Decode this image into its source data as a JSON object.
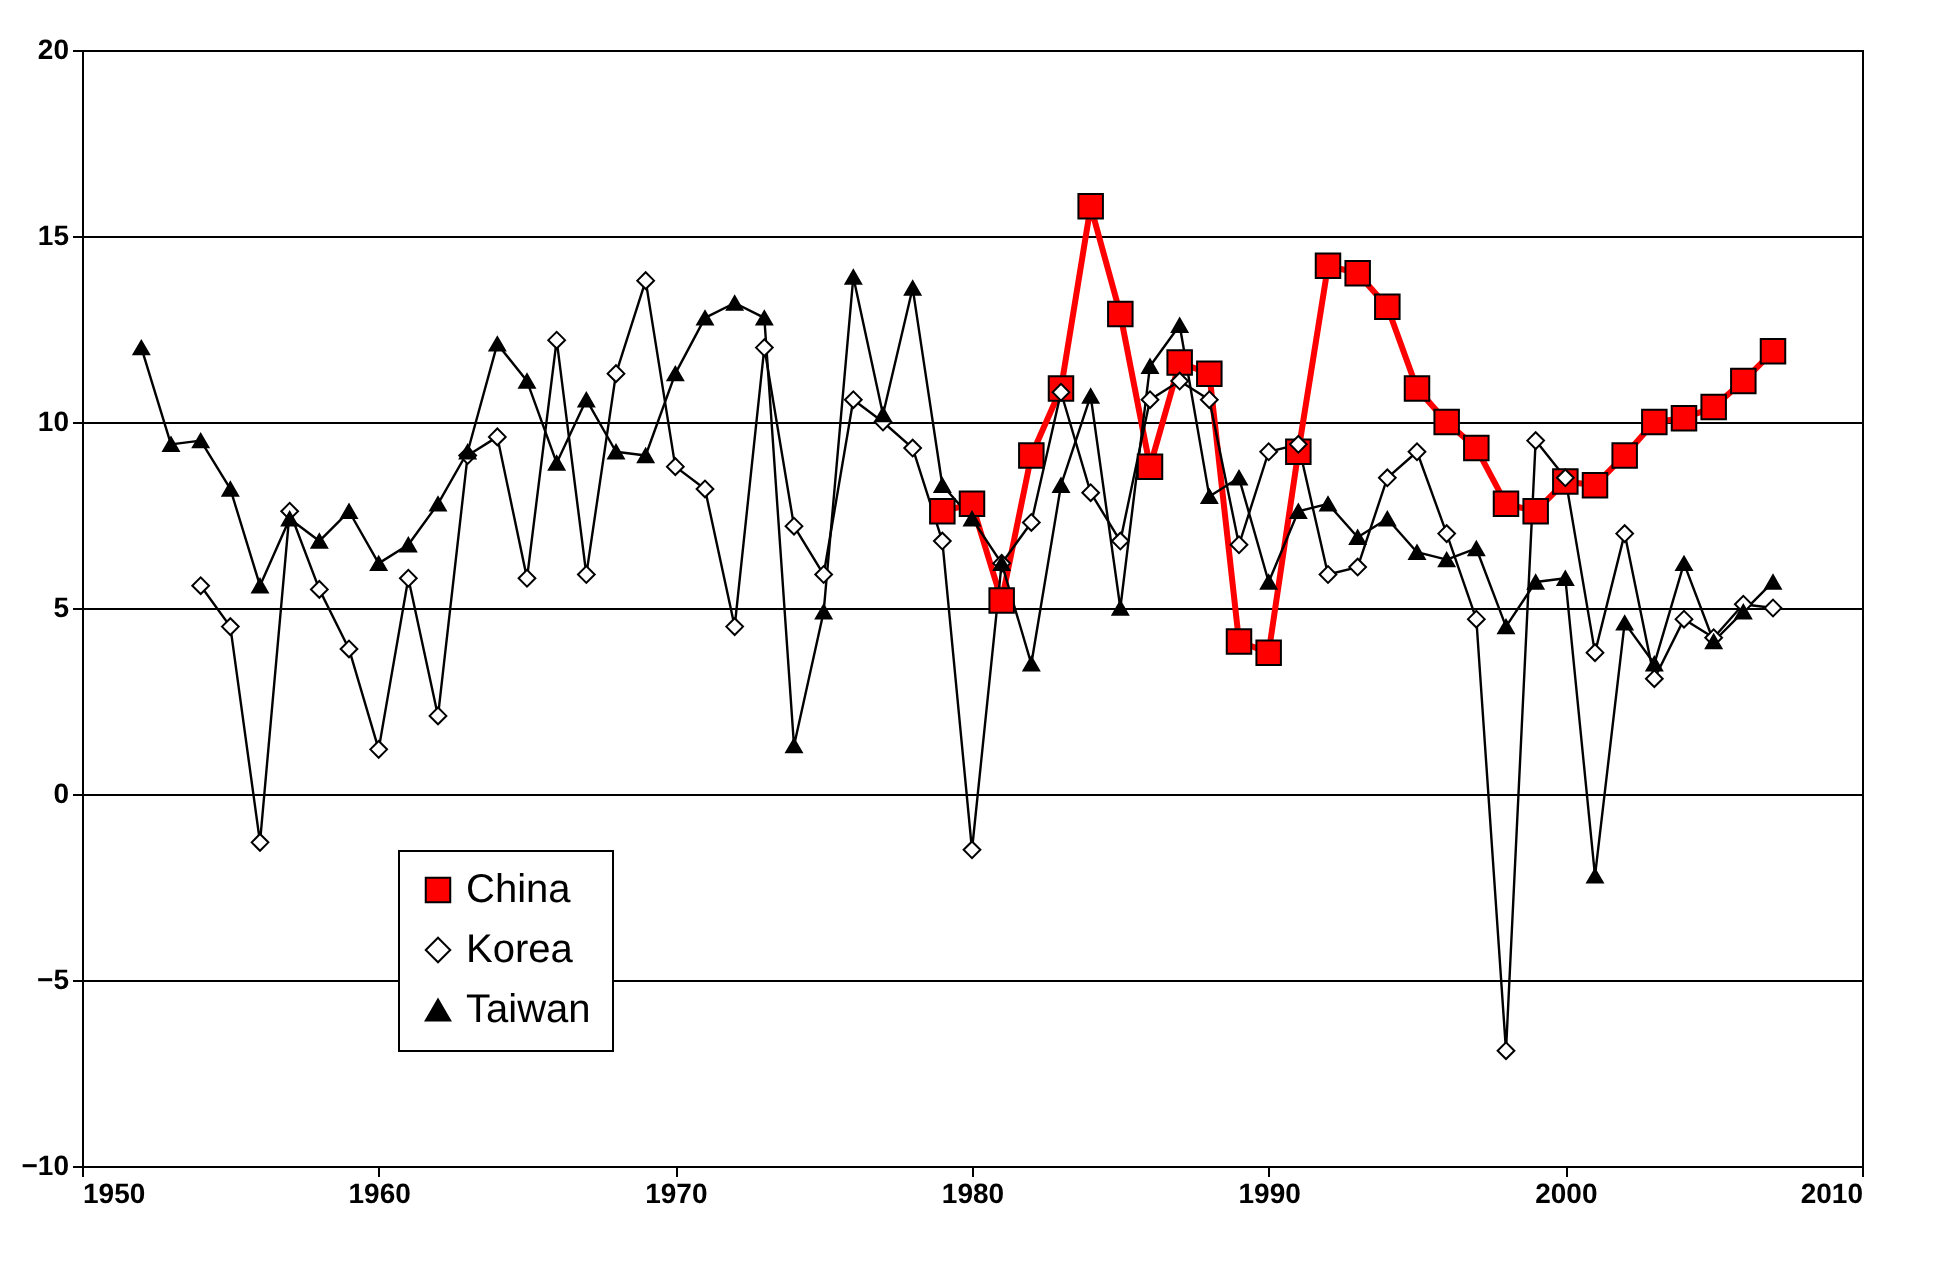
{
  "chart_data": {
    "type": "line",
    "xlim": [
      1950,
      2010
    ],
    "xticks": [
      1950,
      1960,
      1970,
      1980,
      1990,
      2000,
      2010
    ],
    "ylim": [
      -10,
      20
    ],
    "yticks": [
      -10,
      -5,
      0,
      5,
      10,
      15,
      20
    ],
    "grid": "y",
    "legend": "bottom left",
    "series": [
      {
        "name": "China",
        "color": "#ff0000",
        "marker": "square",
        "x": [
          1979,
          1980,
          1981,
          1982,
          1983,
          1984,
          1985,
          1986,
          1987,
          1988,
          1989,
          1990,
          1991,
          1992,
          1993,
          1994,
          1995,
          1996,
          1997,
          1998,
          1999,
          2000,
          2001,
          2002,
          2003,
          2004,
          2005,
          2006,
          2007
        ],
        "values": [
          7.6,
          7.8,
          5.2,
          9.1,
          10.9,
          15.8,
          12.9,
          8.8,
          11.6,
          11.3,
          4.1,
          3.8,
          9.2,
          14.2,
          14.0,
          13.1,
          10.9,
          10.0,
          9.3,
          7.8,
          7.6,
          8.4,
          8.3,
          9.1,
          10.0,
          10.1,
          10.4,
          11.1,
          11.9
        ]
      },
      {
        "name": "Korea",
        "color": "#000000",
        "marker": "diamond",
        "x": [
          1954,
          1955,
          1956,
          1957,
          1958,
          1959,
          1960,
          1961,
          1962,
          1963,
          1964,
          1965,
          1966,
          1967,
          1968,
          1969,
          1970,
          1971,
          1972,
          1973,
          1974,
          1975,
          1976,
          1977,
          1978,
          1979,
          1980,
          1981,
          1982,
          1983,
          1984,
          1985,
          1986,
          1987,
          1988,
          1989,
          1990,
          1991,
          1992,
          1993,
          1994,
          1995,
          1996,
          1997,
          1998,
          1999,
          2000,
          2001,
          2002,
          2003,
          2004,
          2005,
          2006,
          2007
        ],
        "values": [
          5.6,
          4.5,
          -1.3,
          7.6,
          5.5,
          3.9,
          1.2,
          5.8,
          2.1,
          9.1,
          9.6,
          5.8,
          12.2,
          5.9,
          11.3,
          13.8,
          8.8,
          8.2,
          4.5,
          12.0,
          7.2,
          5.9,
          10.6,
          10.0,
          9.3,
          6.8,
          -1.5,
          6.2,
          7.3,
          10.8,
          8.1,
          6.8,
          10.6,
          11.1,
          10.6,
          6.7,
          9.2,
          9.4,
          5.9,
          6.1,
          8.5,
          9.2,
          7.0,
          4.7,
          -6.9,
          9.5,
          8.5,
          3.8,
          7.0,
          3.1,
          4.7,
          4.2,
          5.1,
          5.0
        ]
      },
      {
        "name": "Taiwan",
        "color": "#000000",
        "marker": "triangle",
        "x": [
          1952,
          1953,
          1954,
          1955,
          1956,
          1957,
          1958,
          1959,
          1960,
          1961,
          1962,
          1963,
          1964,
          1965,
          1966,
          1967,
          1968,
          1969,
          1970,
          1971,
          1972,
          1973,
          1974,
          1975,
          1976,
          1977,
          1978,
          1979,
          1980,
          1981,
          1982,
          1983,
          1984,
          1985,
          1986,
          1987,
          1988,
          1989,
          1990,
          1991,
          1992,
          1993,
          1994,
          1995,
          1996,
          1997,
          1998,
          1999,
          2000,
          2001,
          2002,
          2003,
          2004,
          2005,
          2006,
          2007
        ],
        "values": [
          12.0,
          9.4,
          9.5,
          8.2,
          5.6,
          7.4,
          6.8,
          7.6,
          6.2,
          6.7,
          7.8,
          9.2,
          12.1,
          11.1,
          8.9,
          10.6,
          9.2,
          9.1,
          11.3,
          12.8,
          13.2,
          12.8,
          1.3,
          4.9,
          13.9,
          10.2,
          13.6,
          8.3,
          7.4,
          6.2,
          3.5,
          8.3,
          10.7,
          5.0,
          11.5,
          12.6,
          8.0,
          8.5,
          5.7,
          7.6,
          7.8,
          6.9,
          7.4,
          6.5,
          6.3,
          6.6,
          4.5,
          5.7,
          5.8,
          -2.2,
          4.6,
          3.5,
          6.2,
          4.1,
          4.9,
          5.7
        ]
      }
    ]
  }
}
